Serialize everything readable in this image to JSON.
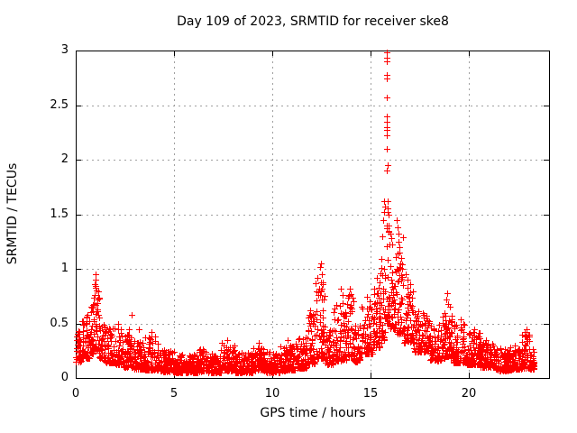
{
  "chart_data": {
    "type": "scatter",
    "title": "Day 109 of 2023, SRMTID for receiver ske8",
    "xlabel": "GPS time / hours",
    "ylabel": "SRMTID / TECUs",
    "xlim": [
      0,
      24.1
    ],
    "ylim": [
      0,
      3
    ],
    "x_ticks": [
      {
        "v": 0,
        "label": "0"
      },
      {
        "v": 5,
        "label": "5"
      },
      {
        "v": 10,
        "label": "10"
      },
      {
        "v": 15,
        "label": "15"
      },
      {
        "v": 20,
        "label": "20"
      }
    ],
    "y_ticks": [
      {
        "v": 0,
        "label": "0"
      },
      {
        "v": 0.5,
        "label": "0.5"
      },
      {
        "v": 1,
        "label": "1"
      },
      {
        "v": 1.5,
        "label": "1.5"
      },
      {
        "v": 2,
        "label": "2"
      },
      {
        "v": 2.5,
        "label": "2.5"
      },
      {
        "v": 3,
        "label": "3"
      }
    ],
    "grid": true,
    "legend": "none",
    "marker": "plus",
    "marker_size_px": 7,
    "marker_color": "#ff0000",
    "grid_color": "#a0a0a0",
    "border_color": "#000000",
    "text_color": "#000000",
    "background_color": "#ffffff",
    "sampling_per_hour": 120,
    "seed": 20230109,
    "skew_power": 2.0,
    "data_t_end": 23.35,
    "density_envelope": [
      [
        0.0,
        0.3,
        0.15,
        0.45
      ],
      [
        0.3,
        0.7,
        0.18,
        0.58
      ],
      [
        0.7,
        0.9,
        0.22,
        0.68
      ],
      [
        0.9,
        1.2,
        0.25,
        0.85
      ],
      [
        1.2,
        1.5,
        0.18,
        0.55
      ],
      [
        1.5,
        2.0,
        0.14,
        0.46
      ],
      [
        2.0,
        2.4,
        0.12,
        0.45
      ],
      [
        2.4,
        2.9,
        0.1,
        0.4
      ],
      [
        2.9,
        3.5,
        0.08,
        0.34
      ],
      [
        3.5,
        4.2,
        0.07,
        0.38
      ],
      [
        4.2,
        5.0,
        0.06,
        0.26
      ],
      [
        5.0,
        6.2,
        0.05,
        0.22
      ],
      [
        6.2,
        6.7,
        0.06,
        0.28
      ],
      [
        6.7,
        7.4,
        0.05,
        0.24
      ],
      [
        7.4,
        8.1,
        0.07,
        0.32
      ],
      [
        8.1,
        9.0,
        0.05,
        0.24
      ],
      [
        9.0,
        9.6,
        0.07,
        0.28
      ],
      [
        9.6,
        10.4,
        0.05,
        0.24
      ],
      [
        10.4,
        11.2,
        0.07,
        0.3
      ],
      [
        11.2,
        11.8,
        0.09,
        0.38
      ],
      [
        11.8,
        12.2,
        0.13,
        0.6
      ],
      [
        12.2,
        12.7,
        0.18,
        0.88
      ],
      [
        12.7,
        13.1,
        0.12,
        0.45
      ],
      [
        13.1,
        13.8,
        0.16,
        0.7
      ],
      [
        13.8,
        14.15,
        0.2,
        0.78
      ],
      [
        14.15,
        14.5,
        0.15,
        0.5
      ],
      [
        14.5,
        15.1,
        0.22,
        0.7
      ],
      [
        15.1,
        15.55,
        0.28,
        0.85
      ],
      [
        15.55,
        15.8,
        0.35,
        1.1
      ],
      [
        15.8,
        16.0,
        0.5,
        1.45
      ],
      [
        16.0,
        16.3,
        0.45,
        1.25
      ],
      [
        16.3,
        16.7,
        0.4,
        1.3
      ],
      [
        16.7,
        17.2,
        0.32,
        0.85
      ],
      [
        17.2,
        18.0,
        0.24,
        0.62
      ],
      [
        18.0,
        18.6,
        0.16,
        0.52
      ],
      [
        18.6,
        19.2,
        0.18,
        0.62
      ],
      [
        19.2,
        19.8,
        0.14,
        0.5
      ],
      [
        19.8,
        20.6,
        0.12,
        0.42
      ],
      [
        20.6,
        21.4,
        0.1,
        0.36
      ],
      [
        21.4,
        22.2,
        0.07,
        0.28
      ],
      [
        22.2,
        22.7,
        0.08,
        0.3
      ],
      [
        22.7,
        23.1,
        0.09,
        0.4
      ],
      [
        23.1,
        23.35,
        0.08,
        0.3
      ]
    ],
    "peak_points": [
      [
        0.35,
        0.52
      ],
      [
        0.55,
        0.56
      ],
      [
        1.0,
        0.95
      ],
      [
        1.02,
        0.9
      ],
      [
        0.98,
        0.86
      ],
      [
        1.05,
        0.8
      ],
      [
        0.95,
        0.76
      ],
      [
        1.08,
        0.72
      ],
      [
        0.92,
        0.68
      ],
      [
        1.12,
        0.63
      ],
      [
        2.15,
        0.5
      ],
      [
        2.7,
        0.45
      ],
      [
        2.84,
        0.58
      ],
      [
        3.2,
        0.45
      ],
      [
        3.85,
        0.42
      ],
      [
        7.7,
        0.35
      ],
      [
        9.3,
        0.32
      ],
      [
        10.8,
        0.35
      ],
      [
        11.95,
        0.62
      ],
      [
        12.05,
        0.58
      ],
      [
        12.3,
        0.92
      ],
      [
        12.42,
        1.02
      ],
      [
        12.5,
        1.05
      ],
      [
        12.55,
        0.95
      ],
      [
        12.6,
        0.88
      ],
      [
        12.38,
        0.82
      ],
      [
        12.33,
        0.76
      ],
      [
        12.63,
        0.72
      ],
      [
        13.5,
        0.82
      ],
      [
        13.6,
        0.76
      ],
      [
        13.95,
        0.82
      ],
      [
        14.85,
        0.74
      ],
      [
        14.95,
        0.7
      ],
      [
        15.2,
        0.82
      ],
      [
        15.35,
        0.92
      ],
      [
        15.45,
        0.88
      ],
      [
        15.52,
        0.96
      ],
      [
        15.62,
        1.3
      ],
      [
        15.66,
        1.45
      ],
      [
        15.7,
        1.52
      ],
      [
        15.73,
        1.57
      ],
      [
        15.68,
        1.62
      ],
      [
        15.85,
        2.98
      ],
      [
        15.84,
        2.93
      ],
      [
        15.86,
        2.9
      ],
      [
        15.85,
        2.78
      ],
      [
        15.84,
        2.74
      ],
      [
        15.85,
        2.57
      ],
      [
        15.86,
        2.4
      ],
      [
        15.85,
        2.35
      ],
      [
        15.84,
        2.3
      ],
      [
        15.85,
        2.27
      ],
      [
        15.86,
        2.22
      ],
      [
        15.85,
        2.1
      ],
      [
        15.87,
        1.95
      ],
      [
        15.86,
        1.9
      ],
      [
        15.89,
        1.62
      ],
      [
        15.9,
        1.55
      ],
      [
        15.88,
        1.52
      ],
      [
        15.91,
        1.5
      ],
      [
        15.95,
        1.4
      ],
      [
        15.92,
        1.35
      ],
      [
        16.0,
        1.32
      ],
      [
        16.05,
        1.28
      ],
      [
        16.1,
        1.22
      ],
      [
        16.35,
        1.45
      ],
      [
        16.4,
        1.38
      ],
      [
        16.45,
        1.32
      ],
      [
        16.42,
        1.25
      ],
      [
        16.5,
        1.2
      ],
      [
        16.48,
        1.15
      ],
      [
        16.55,
        1.1
      ],
      [
        16.52,
        1.05
      ],
      [
        16.6,
        1.0
      ],
      [
        16.8,
        0.95
      ],
      [
        16.9,
        0.9
      ],
      [
        17.05,
        0.86
      ],
      [
        18.85,
        0.72
      ],
      [
        18.9,
        0.78
      ],
      [
        18.95,
        0.68
      ],
      [
        19.05,
        0.65
      ],
      [
        19.6,
        0.54
      ],
      [
        19.75,
        0.5
      ],
      [
        20.3,
        0.45
      ],
      [
        22.85,
        0.42
      ],
      [
        22.95,
        0.45
      ],
      [
        23.05,
        0.4
      ]
    ]
  }
}
